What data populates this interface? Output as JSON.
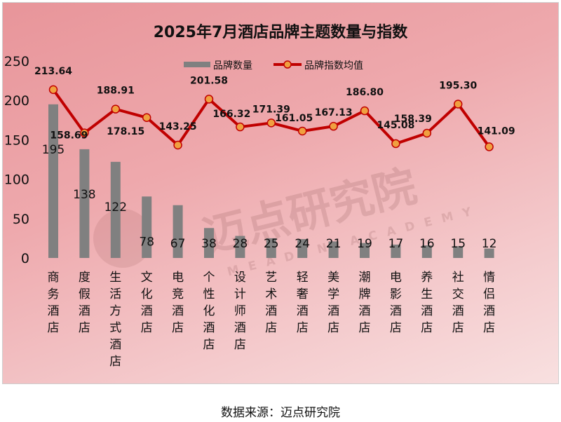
{
  "chart_data": {
    "type": "bar+line",
    "title": "2025年7月酒店品牌主题数量与指数",
    "categories": [
      "商务酒店",
      "度假酒店",
      "生活方式酒店",
      "文化酒店",
      "电竞酒店",
      "个性化酒店",
      "设计师酒店",
      "艺术酒店",
      "轻奢酒店",
      "美学酒店",
      "潮牌酒店",
      "电影酒店",
      "养生酒店",
      "社交酒店",
      "情侣酒店"
    ],
    "series": [
      {
        "name": "品牌数量",
        "type": "bar",
        "color": "#808080",
        "values": [
          195,
          138,
          122,
          78,
          67,
          38,
          28,
          25,
          24,
          21,
          19,
          17,
          16,
          15,
          12
        ]
      },
      {
        "name": "品牌指数均值",
        "type": "line",
        "color": "#c00000",
        "marker_color": "#f0a040",
        "values": [
          213.64,
          158.69,
          188.91,
          178.15,
          143.25,
          201.58,
          166.32,
          171.39,
          161.05,
          167.13,
          186.8,
          145.08,
          158.39,
          195.3,
          141.09
        ]
      }
    ],
    "yticks": [
      0,
      50,
      100,
      150,
      200,
      250
    ],
    "ylim": [
      0,
      250
    ],
    "grid": false,
    "legend": "top-right"
  },
  "watermark": {
    "text": "迈点研究院",
    "subtext": "MEADIN ACADEMY"
  },
  "footer": "数据来源：迈点研究院"
}
